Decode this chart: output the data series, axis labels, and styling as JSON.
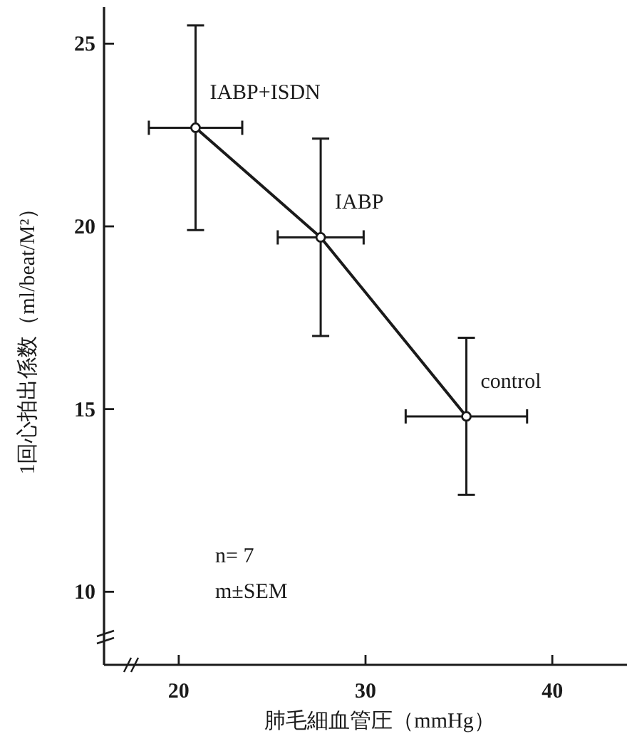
{
  "chart_data": {
    "type": "line",
    "xlabel": "肺毛細血管圧（mmHg）",
    "ylabel": "1回心拍出係数（ml/beat/M²）",
    "xlim": [
      16,
      44
    ],
    "ylim": [
      8,
      26
    ],
    "xticks": [
      20,
      30,
      40
    ],
    "yticks": [
      10,
      15,
      20,
      25
    ],
    "grid": false,
    "marker": "circle",
    "line_style": "solid",
    "x": [
      20.9,
      27.6,
      35.4
    ],
    "series": [
      {
        "color": "#1a1a1a",
        "values": [
          22.7,
          19.7,
          14.8
        ],
        "errors": [
          2.8,
          2.7,
          2.15
        ],
        "xerrors": [
          2.5,
          2.3,
          3.25
        ]
      }
    ],
    "annotations": [
      {
        "text": "IABP+ISDN",
        "x": 20.9,
        "y": 22.7
      },
      {
        "text": "IABP",
        "x": 27.6,
        "y": 19.7
      },
      {
        "text": "control",
        "x": 35.4,
        "y": 14.8
      },
      "n= 7",
      "m±SEM"
    ]
  }
}
